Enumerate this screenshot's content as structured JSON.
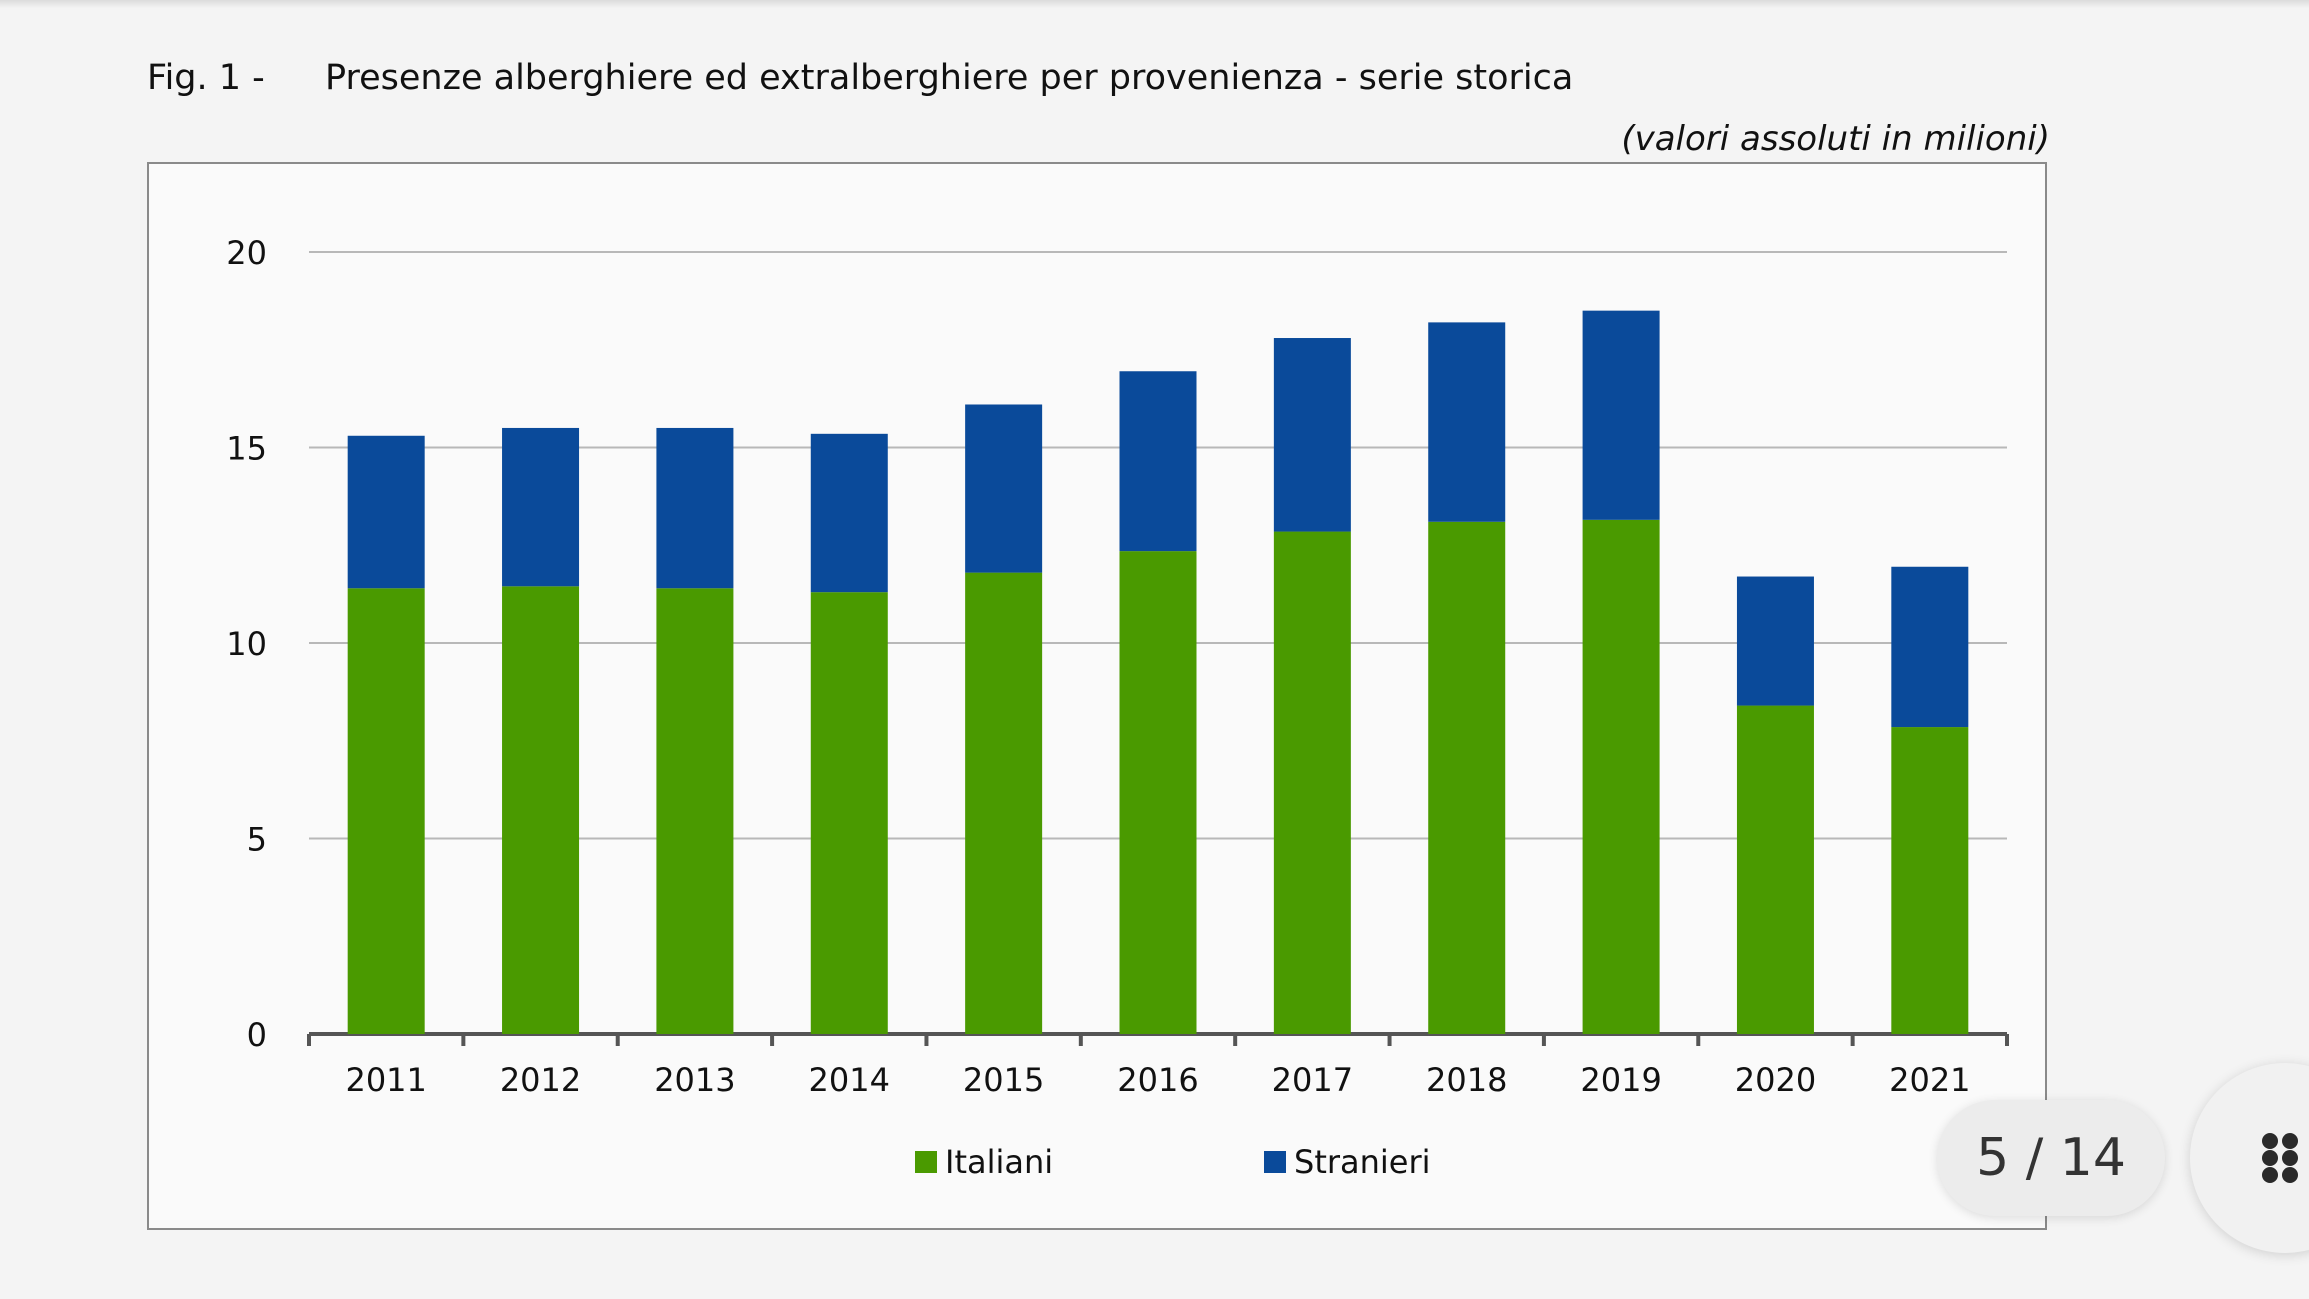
{
  "figure": {
    "label": "Fig. 1 -",
    "title": "Presenze alberghiere ed extralberghiere per provenienza - serie storica",
    "units": "(valori assoluti in milioni)"
  },
  "viewer": {
    "page_indicator": "5 / 14",
    "apps_icon": "grid-dots-icon"
  },
  "colors": {
    "italiani": "#4a9a00",
    "stranieri": "#0a4a9a"
  },
  "chart_data": {
    "type": "bar",
    "stacked": true,
    "categories": [
      "2011",
      "2012",
      "2013",
      "2014",
      "2015",
      "2016",
      "2017",
      "2018",
      "2019",
      "2020",
      "2021"
    ],
    "series": [
      {
        "name": "Italiani",
        "values": [
          11.4,
          11.45,
          11.4,
          11.3,
          11.8,
          12.35,
          12.85,
          13.1,
          13.15,
          8.4,
          7.85
        ]
      },
      {
        "name": "Stranieri",
        "values": [
          3.9,
          4.05,
          4.1,
          4.05,
          4.3,
          4.6,
          4.95,
          5.1,
          5.35,
          3.3,
          4.1
        ]
      }
    ],
    "ylim": [
      0,
      20
    ],
    "yticks": [
      "0",
      "5",
      "10",
      "15",
      "20"
    ],
    "grid": true,
    "legend_position": "bottom"
  }
}
